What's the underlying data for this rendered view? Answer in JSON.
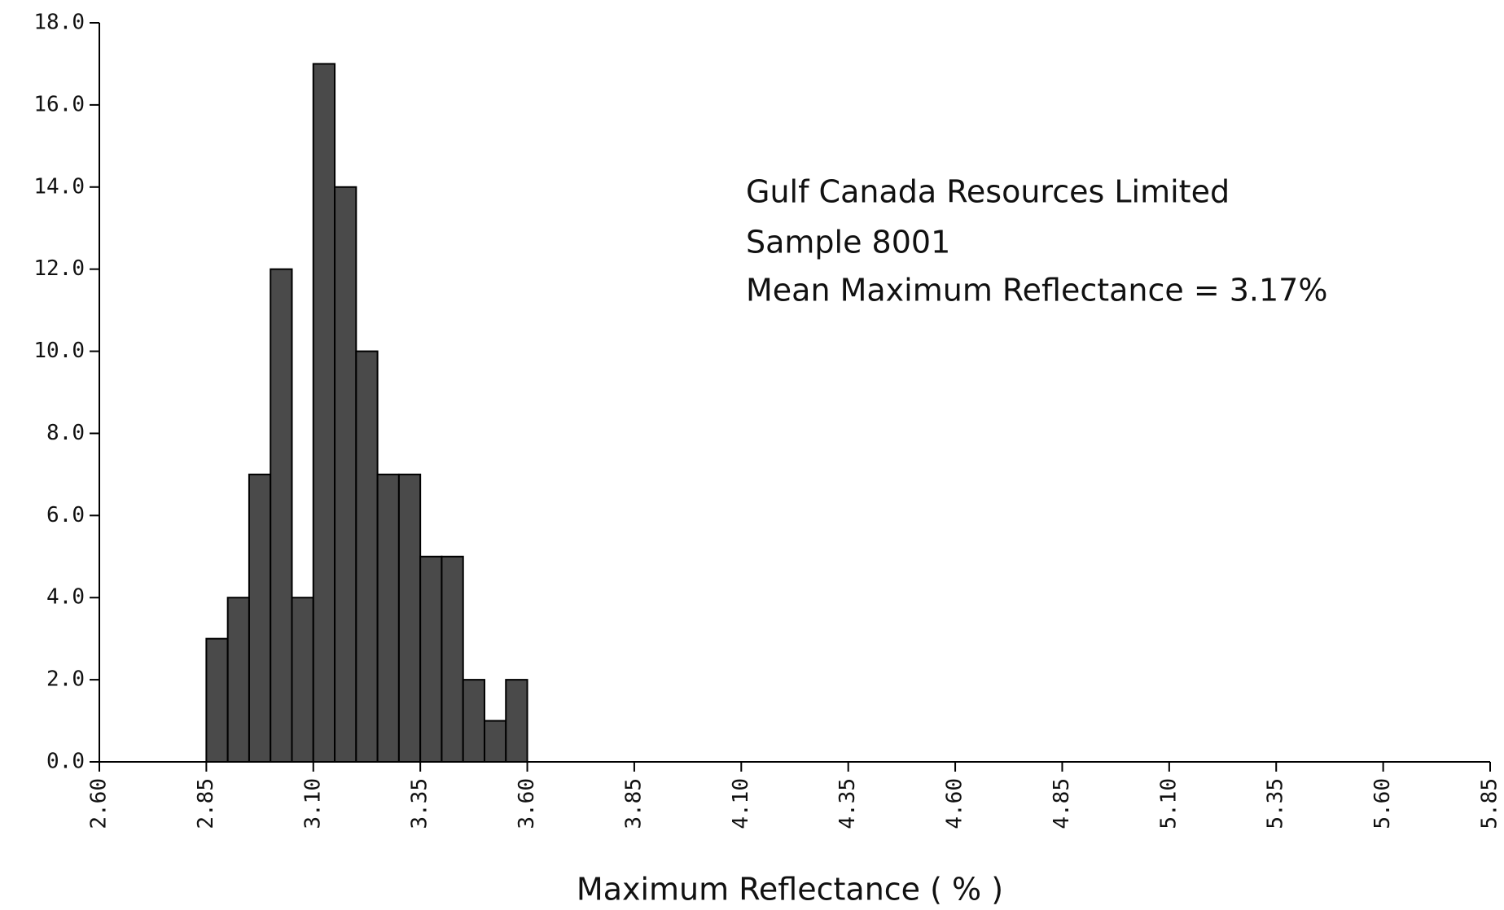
{
  "chart_data": {
    "type": "histogram",
    "xlabel": "Maximum Reflectance ( % )",
    "annotations": [
      "Gulf Canada Resources Limited",
      "Sample 8001",
      "Mean Maximum Reflectance = 3.17%"
    ],
    "bins": [
      2.85,
      2.9,
      2.95,
      3.0,
      3.05,
      3.1,
      3.15,
      3.2,
      3.25,
      3.3,
      3.35,
      3.4,
      3.45,
      3.5,
      3.55,
      3.6
    ],
    "counts": [
      3,
      4,
      7,
      12,
      4,
      17,
      14,
      10,
      7,
      7,
      5,
      5,
      2,
      1,
      2
    ],
    "color": "#4a4a4a",
    "xlim": [
      2.6,
      5.85
    ],
    "xticks": [
      {
        "value": 2.6,
        "label": "2.60"
      },
      {
        "value": 2.85,
        "label": "2.85"
      },
      {
        "value": 3.1,
        "label": "3.10"
      },
      {
        "value": 3.35,
        "label": "3.35"
      },
      {
        "value": 3.6,
        "label": "3.60"
      },
      {
        "value": 3.85,
        "label": "3.85"
      },
      {
        "value": 4.1,
        "label": "4.10"
      },
      {
        "value": 4.35,
        "label": "4.35"
      },
      {
        "value": 4.6,
        "label": "4.60"
      },
      {
        "value": 4.85,
        "label": "4.85"
      },
      {
        "value": 5.1,
        "label": "5.10"
      },
      {
        "value": 5.35,
        "label": "5.35"
      },
      {
        "value": 5.6,
        "label": "5.60"
      },
      {
        "value": 5.85,
        "label": "5.85"
      }
    ],
    "ylim": [
      0,
      18
    ],
    "yticks": [
      {
        "value": 0,
        "label": "0.0"
      },
      {
        "value": 2,
        "label": "2.0"
      },
      {
        "value": 4,
        "label": "4.0"
      },
      {
        "value": 6,
        "label": "6.0"
      },
      {
        "value": 8,
        "label": "8.0"
      },
      {
        "value": 10,
        "label": "10.0"
      },
      {
        "value": 12,
        "label": "12.0"
      },
      {
        "value": 14,
        "label": "14.0"
      },
      {
        "value": 16,
        "label": "16.0"
      },
      {
        "value": 18,
        "label": "18.0"
      }
    ]
  }
}
